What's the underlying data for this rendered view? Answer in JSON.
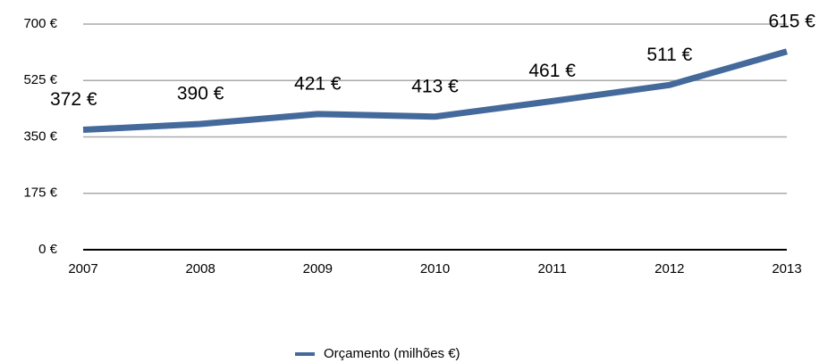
{
  "chart_data": {
    "type": "line",
    "categories": [
      "2007",
      "2008",
      "2009",
      "2010",
      "2011",
      "2012",
      "2013"
    ],
    "series": [
      {
        "name": "Orçamento (milhões €)",
        "color": "#44699b",
        "values": [
          372,
          390,
          421,
          413,
          461,
          511,
          615
        ],
        "value_labels": [
          "372 €",
          "390 €",
          "421 €",
          "413 €",
          "461 €",
          "511 €",
          "615 €"
        ]
      }
    ],
    "ylim": [
      0,
      700
    ],
    "yticks": [
      {
        "value": 0,
        "label": "0 €"
      },
      {
        "value": 175,
        "label": "175 €"
      },
      {
        "value": 350,
        "label": "350 €"
      },
      {
        "value": 525,
        "label": "525 €"
      },
      {
        "value": 700,
        "label": "700 €"
      }
    ],
    "grid": true,
    "legend": "bottom"
  }
}
